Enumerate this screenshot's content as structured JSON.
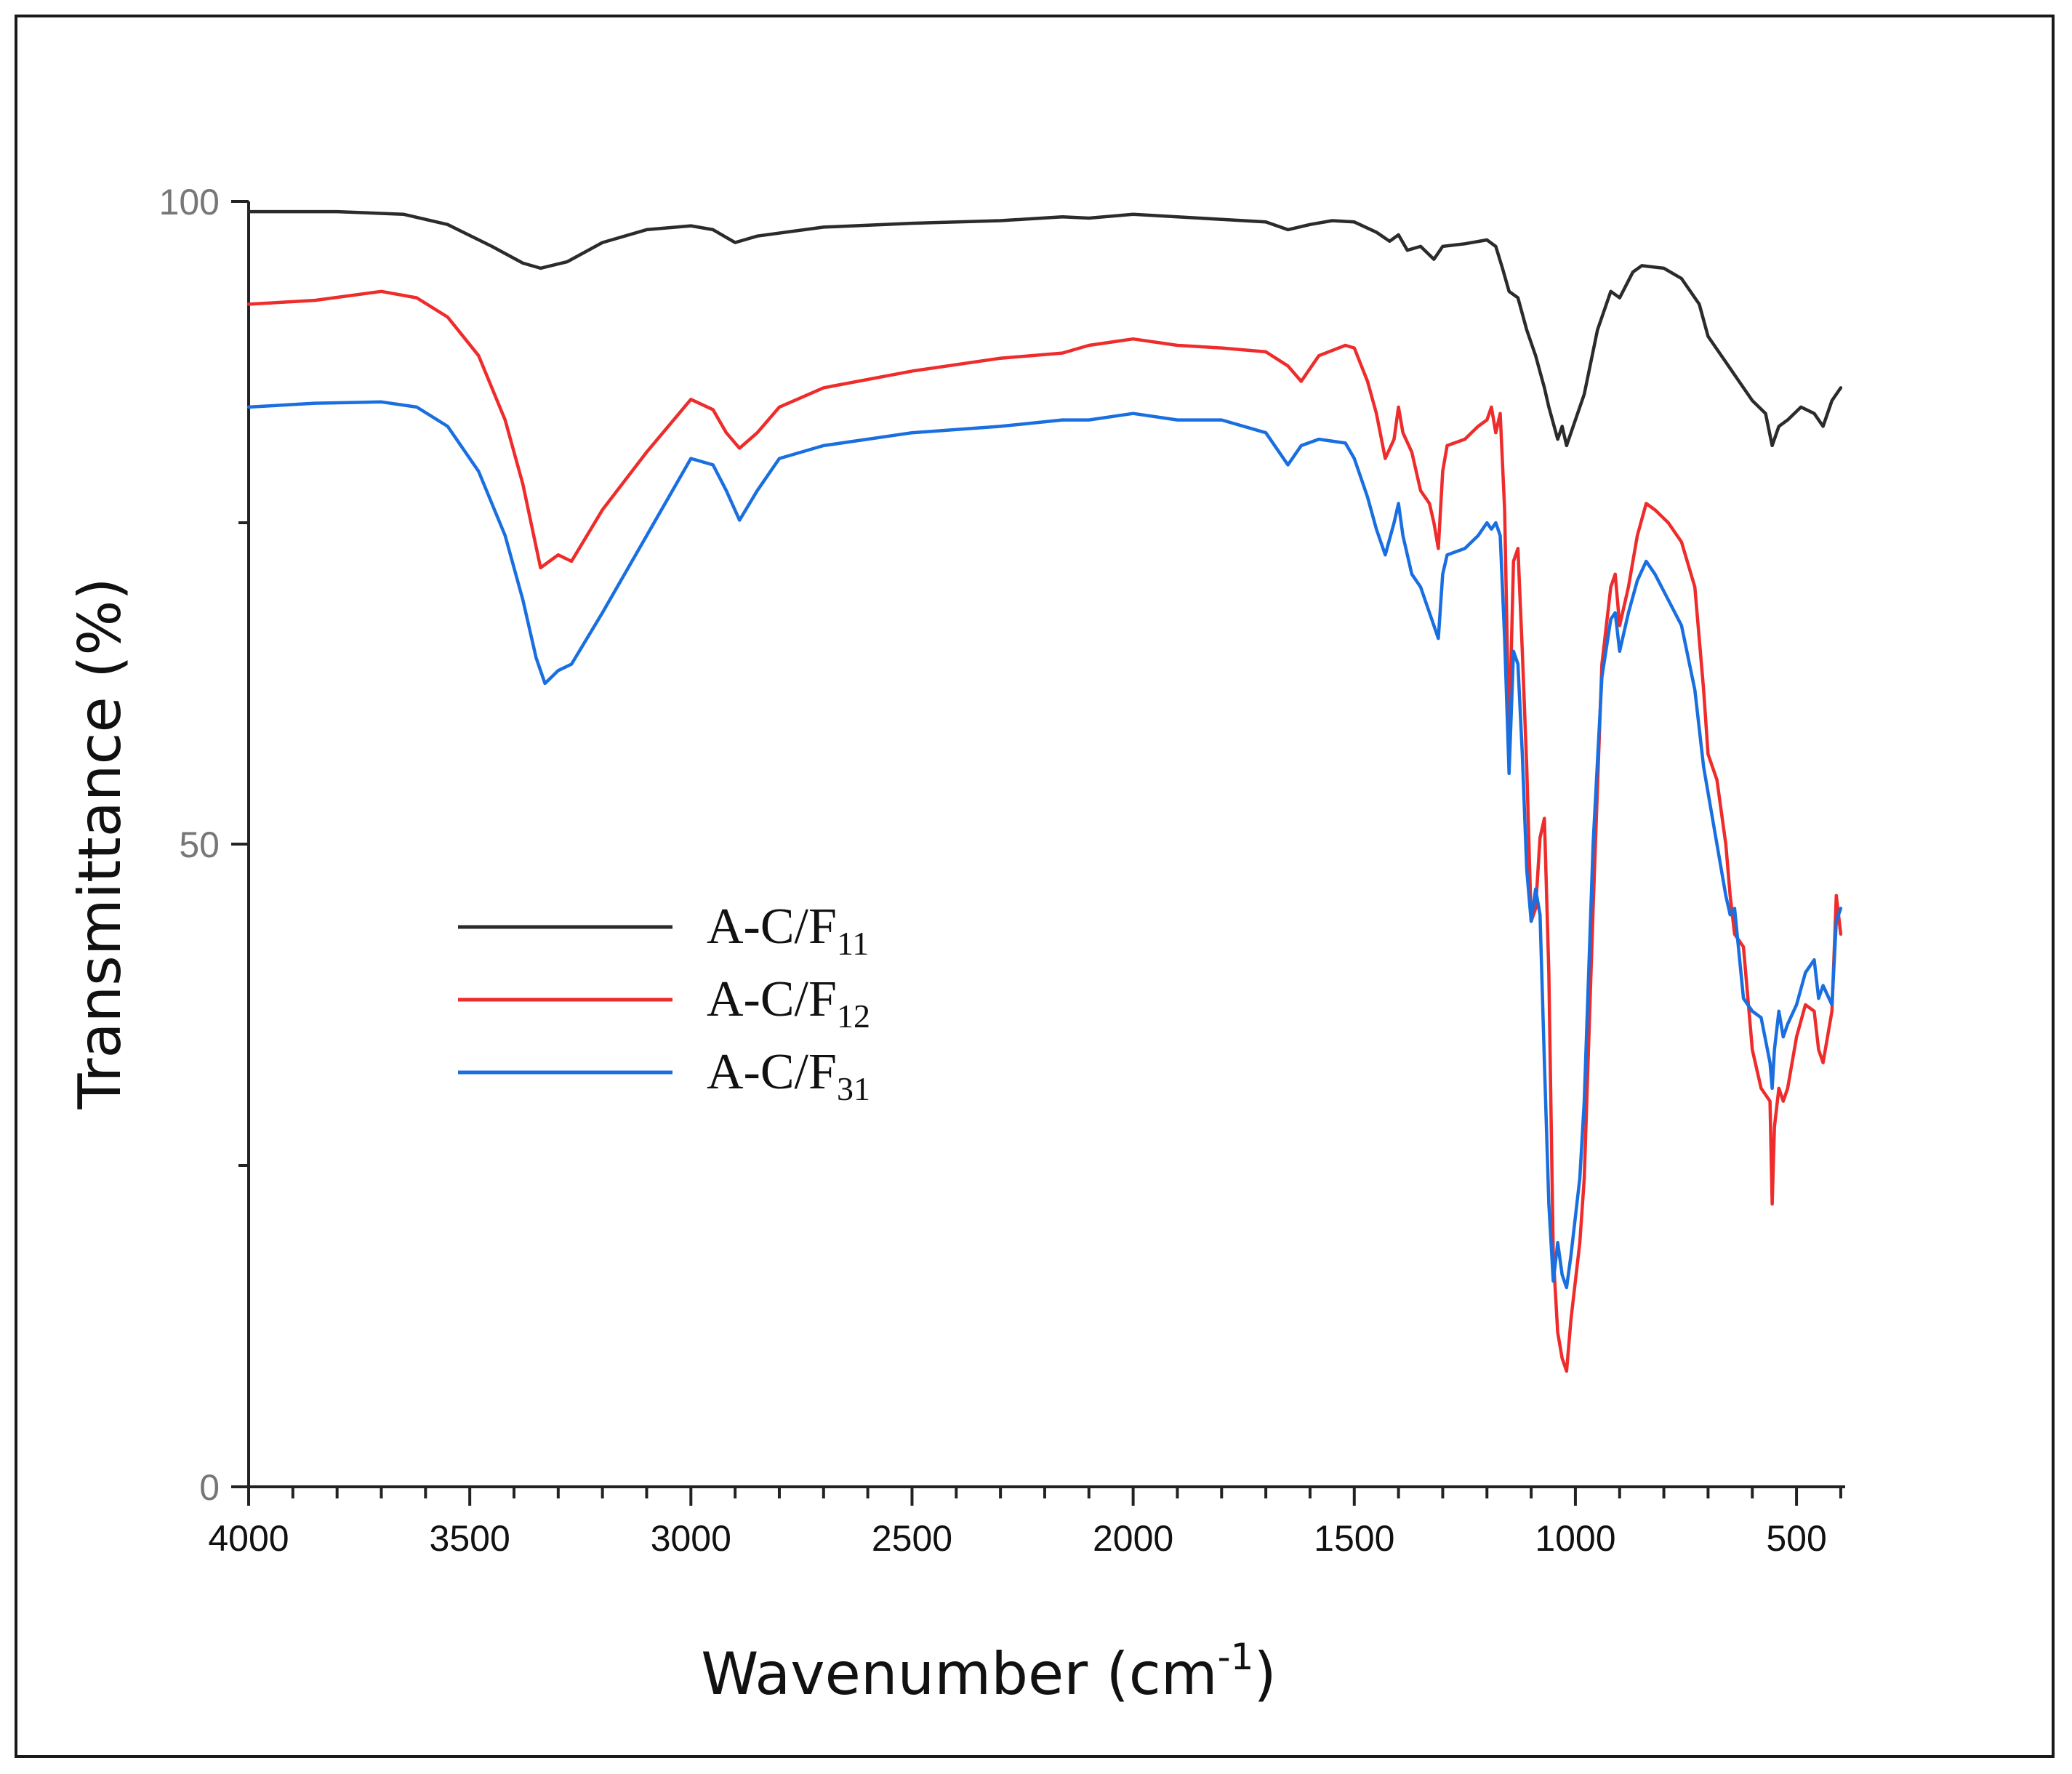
{
  "chart_data": {
    "type": "line",
    "title": "",
    "xlabel": "Wavenumber (cm",
    "xlabel_sup": "-1",
    "xlabel_close": ")",
    "ylabel": "Transmittance (%)",
    "xlim": [
      4000,
      400
    ],
    "ylim": [
      0,
      100
    ],
    "x_ticks": [
      4000,
      3500,
      3000,
      2500,
      2000,
      1500,
      1000,
      500
    ],
    "x_tick_labels": [
      "4000",
      "3500",
      "3000",
      "2500",
      "2000",
      "1500",
      "1000",
      "500"
    ],
    "y_ticks": [
      0,
      50,
      100
    ],
    "y_tick_labels": [
      "0",
      "50",
      "100"
    ],
    "grid": false,
    "legend_position": "center-left",
    "series": [
      {
        "name": "A-C/F11",
        "label_main": "A-C/F",
        "label_sub": "11",
        "color": "#2b2b2b",
        "x": [
          4000,
          3800,
          3650,
          3550,
          3450,
          3380,
          3340,
          3280,
          3200,
          3100,
          3000,
          2950,
          2900,
          2850,
          2700,
          2500,
          2300,
          2160,
          2100,
          2000,
          1900,
          1800,
          1700,
          1650,
          1600,
          1550,
          1500,
          1450,
          1420,
          1400,
          1380,
          1350,
          1320,
          1300,
          1250,
          1200,
          1180,
          1165,
          1150,
          1130,
          1110,
          1090,
          1070,
          1060,
          1040,
          1030,
          1020,
          1000,
          980,
          950,
          920,
          900,
          870,
          850,
          800,
          760,
          720,
          700,
          660,
          630,
          600,
          570,
          555,
          540,
          520,
          490,
          460,
          440,
          420,
          400
        ],
        "y": [
          99.2,
          99.2,
          99.0,
          98.2,
          96.5,
          95.2,
          94.8,
          95.3,
          96.8,
          97.8,
          98.1,
          97.8,
          96.8,
          97.3,
          98.0,
          98.3,
          98.5,
          98.8,
          98.7,
          99.0,
          98.8,
          98.6,
          98.4,
          97.8,
          98.2,
          98.5,
          98.4,
          97.6,
          96.9,
          97.4,
          96.2,
          96.5,
          95.5,
          96.5,
          96.7,
          97.0,
          96.5,
          94.8,
          93.0,
          92.5,
          90.0,
          88.0,
          85.5,
          84.0,
          81.5,
          82.5,
          81.0,
          83.0,
          85.0,
          90.0,
          93.0,
          92.5,
          94.5,
          95.0,
          94.8,
          94.0,
          92.0,
          89.5,
          87.5,
          86.0,
          84.5,
          83.5,
          81.0,
          82.5,
          83.0,
          84.0,
          83.5,
          82.5,
          84.5,
          85.5
        ]
      },
      {
        "name": "A-C/F12",
        "label_main": "A-C/F",
        "label_sub": "12",
        "color": "#ee2c2c",
        "x": [
          4000,
          3850,
          3700,
          3620,
          3550,
          3480,
          3420,
          3380,
          3340,
          3320,
          3300,
          3270,
          3200,
          3100,
          3000,
          2950,
          2920,
          2890,
          2850,
          2800,
          2700,
          2500,
          2300,
          2160,
          2100,
          2000,
          1900,
          1800,
          1700,
          1650,
          1620,
          1580,
          1520,
          1500,
          1470,
          1450,
          1430,
          1410,
          1400,
          1390,
          1370,
          1350,
          1330,
          1320,
          1310,
          1300,
          1290,
          1250,
          1220,
          1200,
          1190,
          1180,
          1170,
          1160,
          1150,
          1140,
          1130,
          1120,
          1110,
          1100,
          1090,
          1080,
          1070,
          1060,
          1050,
          1040,
          1030,
          1020,
          1010,
          1000,
          990,
          980,
          960,
          940,
          920,
          910,
          900,
          880,
          860,
          840,
          820,
          790,
          760,
          730,
          710,
          700,
          680,
          660,
          650,
          640,
          620,
          600,
          580,
          560,
          555,
          550,
          540,
          530,
          520,
          500,
          480,
          460,
          450,
          440,
          420,
          410,
          400
        ],
        "y": [
          92.0,
          92.3,
          93.0,
          92.5,
          91.0,
          88.0,
          83.0,
          78.0,
          71.5,
          72.0,
          72.5,
          72.0,
          76.0,
          80.5,
          84.6,
          83.8,
          82.0,
          80.8,
          82.0,
          84.0,
          85.5,
          86.8,
          87.8,
          88.2,
          88.8,
          89.3,
          88.8,
          88.6,
          88.3,
          87.2,
          86.0,
          88.0,
          88.8,
          88.6,
          86.0,
          83.5,
          80.0,
          81.5,
          84.0,
          82.0,
          80.5,
          77.5,
          76.5,
          75.0,
          73.0,
          79.0,
          81.0,
          81.5,
          82.5,
          83.0,
          84.0,
          82.0,
          83.5,
          76.0,
          58.0,
          72.0,
          73.0,
          65.0,
          56.0,
          44.0,
          45.0,
          50.5,
          52.0,
          40.0,
          18.0,
          12.0,
          10.0,
          9.0,
          13.0,
          16.0,
          19.0,
          24.0,
          45.0,
          64.0,
          70.0,
          71.0,
          67.0,
          70.0,
          74.0,
          76.5,
          76.0,
          75.0,
          73.5,
          70.0,
          62.0,
          57.0,
          55.0,
          50.0,
          46.0,
          43.0,
          42.0,
          34.0,
          31.0,
          30.0,
          22.0,
          28.0,
          31.0,
          30.0,
          31.0,
          35.0,
          37.5,
          37.0,
          34.0,
          33.0,
          37.0,
          46.0,
          43.0
        ]
      },
      {
        "name": "A-C/F31",
        "label_main": "A-C/F",
        "label_sub": "31",
        "color": "#1a6fe0",
        "x": [
          4000,
          3850,
          3700,
          3620,
          3550,
          3480,
          3420,
          3380,
          3350,
          3330,
          3300,
          3270,
          3200,
          3100,
          3000,
          2950,
          2920,
          2890,
          2850,
          2800,
          2700,
          2500,
          2300,
          2160,
          2100,
          2000,
          1900,
          1800,
          1700,
          1650,
          1620,
          1580,
          1520,
          1500,
          1470,
          1450,
          1430,
          1410,
          1400,
          1390,
          1370,
          1350,
          1330,
          1320,
          1310,
          1300,
          1290,
          1250,
          1220,
          1200,
          1190,
          1180,
          1170,
          1160,
          1150,
          1140,
          1130,
          1120,
          1110,
          1100,
          1090,
          1080,
          1070,
          1060,
          1050,
          1040,
          1030,
          1020,
          1010,
          1000,
          990,
          980,
          960,
          940,
          920,
          910,
          900,
          880,
          860,
          840,
          820,
          790,
          760,
          730,
          710,
          700,
          680,
          660,
          650,
          640,
          620,
          600,
          580,
          560,
          555,
          550,
          540,
          530,
          520,
          500,
          480,
          460,
          450,
          440,
          420,
          410,
          400
        ],
        "y": [
          84.0,
          84.3,
          84.4,
          84.0,
          82.5,
          79.0,
          74.0,
          69.0,
          64.5,
          62.5,
          63.5,
          64.0,
          68.0,
          74.0,
          80.0,
          79.5,
          77.5,
          75.2,
          77.5,
          80.0,
          81.0,
          82.0,
          82.5,
          83.0,
          83.0,
          83.5,
          83.0,
          83.0,
          82.0,
          79.5,
          81.0,
          81.5,
          81.2,
          80.0,
          77.0,
          74.5,
          72.5,
          75.0,
          76.5,
          74.0,
          71.0,
          70.0,
          68.0,
          67.0,
          66.0,
          71.0,
          72.5,
          73.0,
          74.0,
          75.0,
          74.5,
          75.0,
          74.0,
          66.0,
          55.5,
          65.0,
          64.0,
          57.0,
          48.0,
          44.0,
          46.5,
          44.5,
          33.0,
          22.0,
          16.0,
          19.0,
          16.5,
          15.5,
          18.0,
          21.0,
          24.0,
          30.0,
          50.0,
          63.0,
          67.5,
          68.0,
          65.0,
          68.0,
          70.5,
          72.0,
          71.0,
          69.0,
          67.0,
          62.0,
          56.0,
          54.0,
          50.0,
          46.0,
          44.5,
          45.0,
          38.0,
          37.0,
          36.5,
          33.0,
          31.0,
          34.0,
          37.0,
          35.0,
          36.0,
          37.5,
          40.0,
          41.0,
          38.0,
          39.0,
          37.5,
          44.0,
          45.0
        ]
      }
    ]
  }
}
